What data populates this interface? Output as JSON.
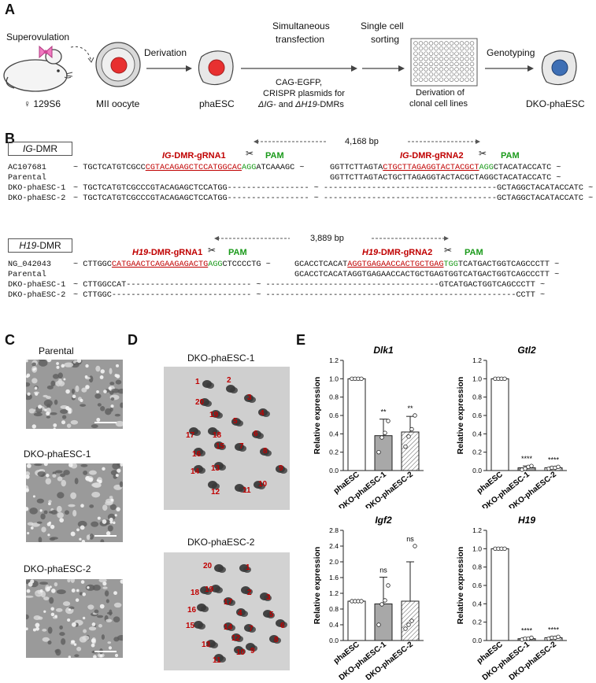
{
  "panels": {
    "A": "A",
    "B": "B",
    "C": "C",
    "D": "D",
    "E": "E"
  },
  "A": {
    "superovulation": "Superovulation",
    "strain": "♀ 129S6",
    "oocyte": "MII oocyte",
    "derivation": "Derivation",
    "phaesc": "phaESC",
    "simultaneous": "Simultaneous",
    "transfection": "transfection",
    "plasmid1": "CAG-EGFP,",
    "plasmid2": "CRISPR plasmids for",
    "plasmid3_a": "ΔIG-",
    "plasmid3_b": " and ",
    "plasmid3_c": "ΔH19",
    "plasmid3_d": "-DMRs",
    "single": "Single cell",
    "sorting": "sorting",
    "derivation_of": "Derivation of",
    "clonal": "clonal cell lines",
    "genotyping": "Genotyping",
    "dko": "DKO-phaESC",
    "colors": {
      "red": "#e83030",
      "blue": "#3e6fb5",
      "bow": "#f07ac0"
    }
  },
  "B": {
    "ig_box_a": "IG",
    "ig_box_b": "-DMR",
    "h19_box_a": "H19",
    "h19_box_b": "-DMR",
    "ig_dist": "4,168 bp",
    "h19_dist": "3,889 bp",
    "ig_g1_a": "IG",
    "ig_g1_b": "-DMR-gRNA1",
    "ig_g2_a": "IG",
    "ig_g2_b": "-DMR-gRNA2",
    "h19_g1_a": "H19",
    "h19_g1_b": "-DMR-gRNA1",
    "h19_g2_a": "H19",
    "h19_g2_b": "-DMR-gRNA2",
    "pam": "PAM",
    "ig_rows": [
      {
        "name": "AC107681",
        "l1": "~ TGCTCATGTCGCC",
        "lg": "CGTACAGAGCTCCATGGCAC",
        "lp": "AGG",
        "l2": "ATCAAAGC ~",
        "r1": "GGTTCTTAGTA",
        "rg": "CTGCTTAGAGGTACTACGCT",
        "rp": "AGG",
        "r2": "CTACATACCATC ~"
      },
      {
        "name": "Parental",
        "l1": "",
        "lg": "",
        "lp": "",
        "l2": "",
        "r1": "GGTTCTTAGTACTGCTTAGAGGTACTACGCTAGGCTACATACCATC ~",
        "rg": "",
        "rp": "",
        "r2": ""
      },
      {
        "name": "DKO-phaESC-1",
        "l1": "~ TGCTCATGTCGCCCGTACAGAGCTCCATGG----------------- ~ ------------------------------------GCTAGGCTACATACCATC ~",
        "lg": "",
        "lp": "",
        "l2": "",
        "r1": "",
        "rg": "",
        "rp": "",
        "r2": ""
      },
      {
        "name": "DKO-phaESC-2",
        "l1": "~ TGCTCATGTCGCCCGTACAGAGCTCCATGG----------------- ~ ------------------------------------GCTAGGCTACATACCATC ~",
        "lg": "",
        "lp": "",
        "l2": "",
        "r1": "",
        "rg": "",
        "rp": "",
        "r2": ""
      }
    ],
    "h19_rows": [
      {
        "name": "NG_042043",
        "l1": "~ CTTGGC",
        "lg": "CATGAACTCAGAAGAGACTG",
        "lp": "AGG",
        "l2": "CTCCCCTG ~",
        "r1": "GCACCTCACAT",
        "rg": "AGGTGAGAACCACTGCTGAG",
        "rp": "TGG",
        "r2": "TCATGACTGGTCAGCCCTT ~"
      },
      {
        "name": "Parental",
        "l1": "",
        "lg": "",
        "lp": "",
        "l2": "",
        "r1": "GCACCTCACATAGGTGAGAACCACTGCTGAGTGGTCATGACTGGTCAGCCCTT ~",
        "rg": "",
        "rp": "",
        "r2": ""
      },
      {
        "name": "DKO-phaESC-1",
        "l1": "~ CTTGGCCAT-------------------------- ~ ------------------------------------GTCATGACTGGTCAGCCCTT ~",
        "lg": "",
        "lp": "",
        "l2": "",
        "r1": "",
        "rg": "",
        "rp": "",
        "r2": ""
      },
      {
        "name": "DKO-phaESC-2",
        "l1": "~ CTTGGC----------------------------- ~ ----------------------------------------------------CCTT ~",
        "lg": "",
        "lp": "",
        "l2": "",
        "r1": "",
        "rg": "",
        "rp": "",
        "r2": ""
      }
    ]
  },
  "C": {
    "labels": [
      "Parental",
      "DKO-phaESC-1",
      "DKO-phaESC-2"
    ]
  },
  "D": {
    "titles": [
      "DKO-phaESC-1",
      "DKO-phaESC-2"
    ]
  },
  "chart_data": [
    {
      "type": "bar",
      "title": "Dlk1",
      "ylabel": "Relative expression",
      "categories": [
        "phaESC",
        "DKO-phaESC-1",
        "DKO-phaESC-2"
      ],
      "values": [
        1.0,
        0.38,
        0.42
      ],
      "errors": [
        0,
        0.18,
        0.17
      ],
      "points": [
        [
          1,
          1,
          1,
          1
        ],
        [
          0.2,
          0.36,
          0.41,
          0.54
        ],
        [
          0.26,
          0.37,
          0.45,
          0.6
        ]
      ],
      "sig": [
        "",
        "**",
        "**"
      ],
      "ylim": [
        0,
        1.2
      ],
      "ticks": [
        0.0,
        0.2,
        0.4,
        0.6,
        0.8,
        1.0,
        1.2
      ]
    },
    {
      "type": "bar",
      "title": "Gtl2",
      "ylabel": "Relative expression",
      "categories": [
        "phaESC",
        "DKO-phaESC-1",
        "DKO-phaESC-2"
      ],
      "values": [
        1.0,
        0.03,
        0.03
      ],
      "errors": [
        0,
        0.02,
        0.01
      ],
      "points": [
        [
          1,
          1,
          1,
          1
        ],
        [
          0.01,
          0.02,
          0.04,
          0.05
        ],
        [
          0.02,
          0.03,
          0.03,
          0.04
        ]
      ],
      "sig": [
        "",
        "****",
        "****"
      ],
      "ylim": [
        0,
        1.2
      ],
      "ticks": [
        0.0,
        0.2,
        0.4,
        0.6,
        0.8,
        1.0,
        1.2
      ]
    },
    {
      "type": "bar",
      "title": "Igf2",
      "ylabel": "Relative expression",
      "categories": [
        "phaESC",
        "DKO-phaESC-1",
        "DKO-phaESC-2"
      ],
      "values": [
        1.0,
        0.93,
        1.0
      ],
      "errors": [
        0,
        0.68,
        1.0
      ],
      "points": [
        [
          1,
          1,
          1,
          1
        ],
        [
          0.4,
          0.92,
          1.02,
          1.4
        ],
        [
          0.3,
          0.4,
          0.5,
          2.4
        ]
      ],
      "sig": [
        "",
        "ns",
        "ns"
      ],
      "ylim": [
        0,
        2.8
      ],
      "ticks": [
        0.0,
        0.4,
        0.8,
        1.2,
        1.6,
        2.0,
        2.4,
        2.8
      ]
    },
    {
      "type": "bar",
      "title": "H19",
      "ylabel": "Relative expression",
      "categories": [
        "phaESC",
        "DKO-phaESC-1",
        "DKO-phaESC-2"
      ],
      "values": [
        1.0,
        0.02,
        0.03
      ],
      "errors": [
        0,
        0.01,
        0.01
      ],
      "points": [
        [
          1,
          1,
          1,
          1
        ],
        [
          0.01,
          0.02,
          0.02,
          0.03
        ],
        [
          0.02,
          0.03,
          0.03,
          0.04
        ]
      ],
      "sig": [
        "",
        "****",
        "****"
      ],
      "ylim": [
        0,
        1.2
      ],
      "ticks": [
        0.0,
        0.2,
        0.4,
        0.6,
        0.8,
        1.0,
        1.2
      ]
    }
  ]
}
